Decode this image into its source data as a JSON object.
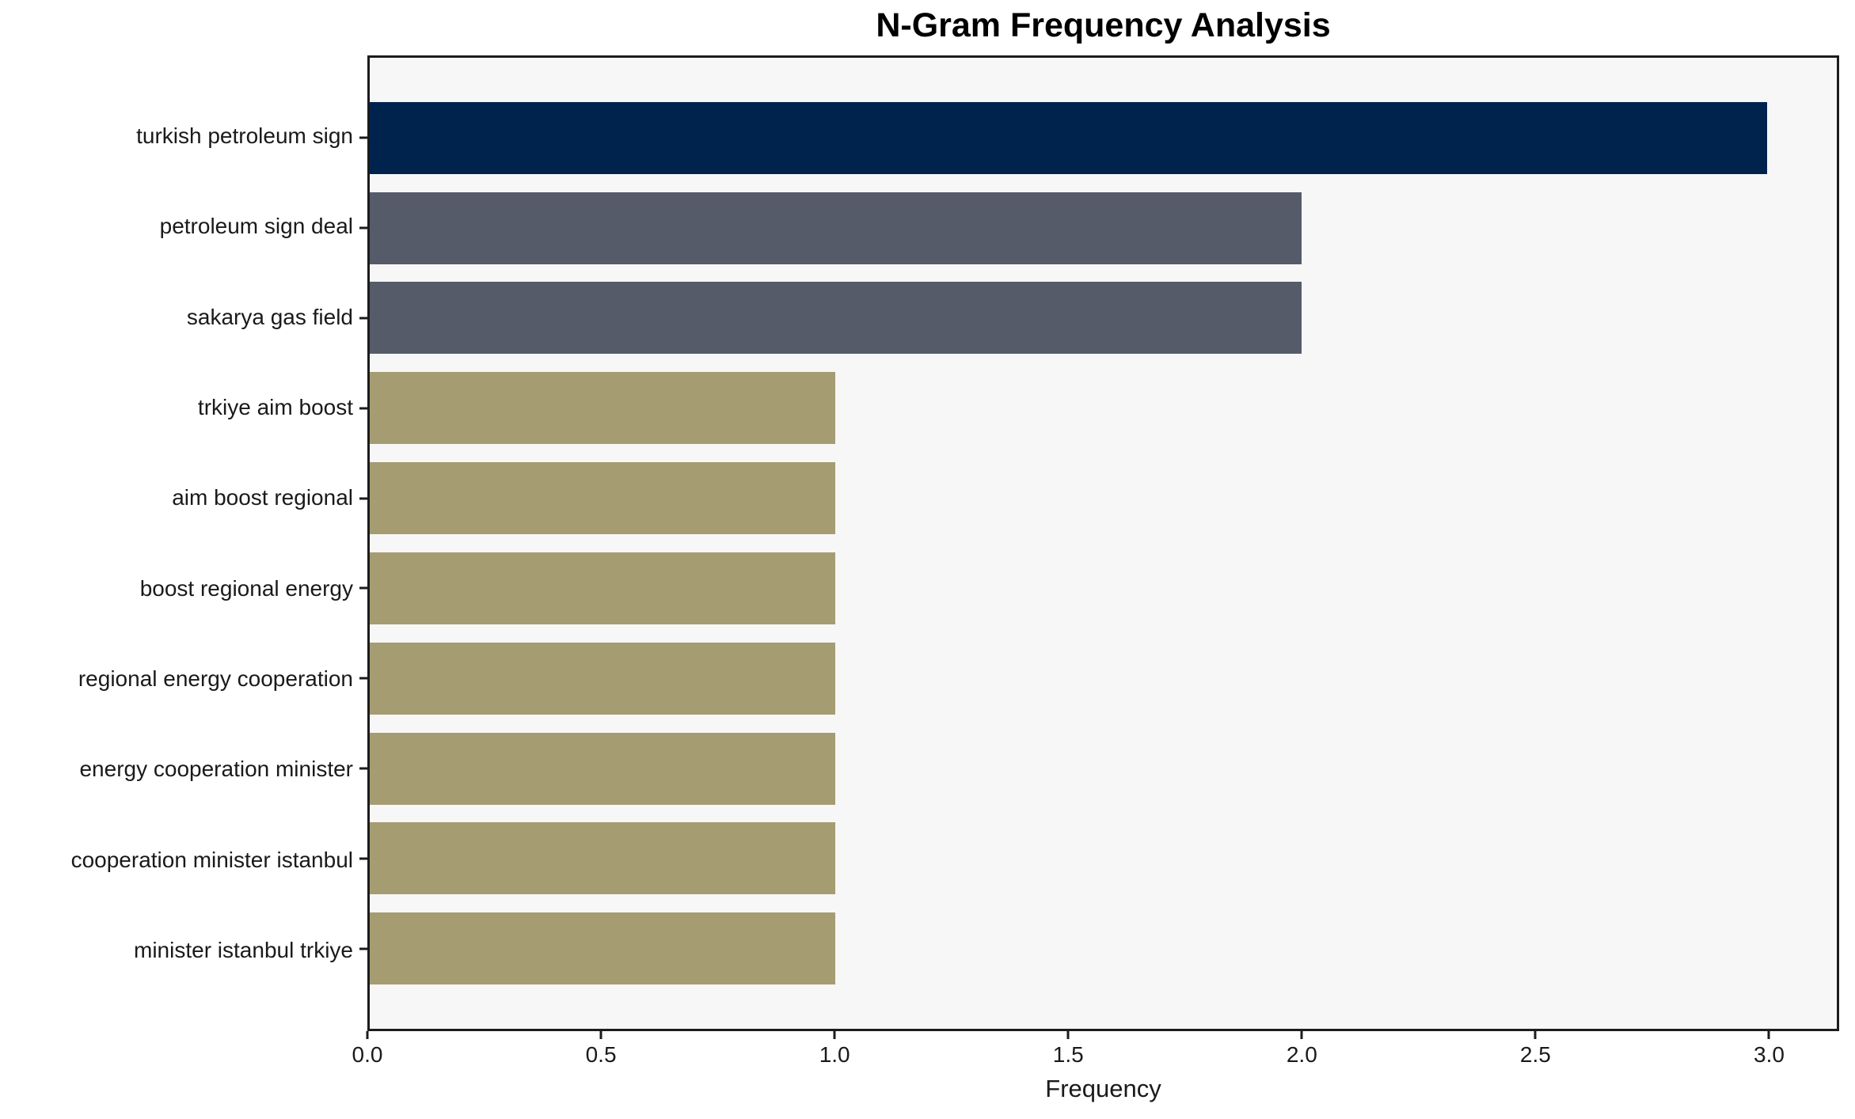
{
  "colors": {
    "navy_bar": "#00234e",
    "slate_bar": "#565b6a",
    "khaki_bar": "#a59c71",
    "plot_background": "#f7f7f8",
    "figure_background": "#ffffff",
    "spine": "#1c1c1c",
    "text": "#1a1a1a"
  },
  "chart_data": {
    "type": "bar",
    "orientation": "horizontal",
    "title": "N-Gram Frequency Analysis",
    "xlabel": "Frequency",
    "ylabel": "",
    "categories": [
      "turkish petroleum sign",
      "petroleum sign deal",
      "sakarya gas field",
      "trkiye aim boost",
      "aim boost regional",
      "boost regional energy",
      "regional energy cooperation",
      "energy cooperation minister",
      "cooperation minister istanbul",
      "minister istanbul trkiye"
    ],
    "values": [
      3,
      2,
      2,
      1,
      1,
      1,
      1,
      1,
      1,
      1
    ],
    "bar_colors": [
      "#00234e",
      "#565b6a",
      "#565b6a",
      "#a59c71",
      "#a59c71",
      "#a59c71",
      "#a59c71",
      "#a59c71",
      "#a59c71",
      "#a59c71"
    ],
    "xticks": [
      "0.0",
      "0.5",
      "1.0",
      "1.5",
      "2.0",
      "2.5",
      "3.0"
    ],
    "xtick_values": [
      0,
      0.5,
      1.0,
      1.5,
      2.0,
      2.5,
      3.0
    ],
    "xlim": [
      0,
      3.15
    ],
    "ylim": [
      -0.89,
      9.89
    ],
    "bar_thickness": 0.8,
    "grid": false,
    "legend": false
  }
}
